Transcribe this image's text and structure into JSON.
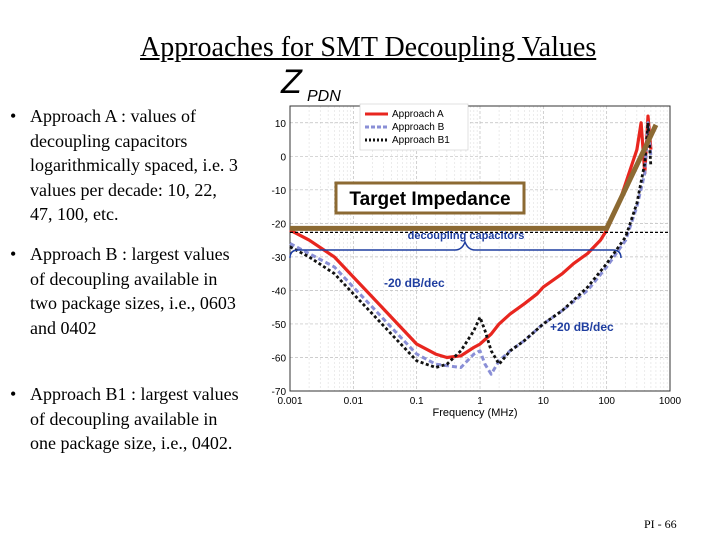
{
  "slide": {
    "title": "Approaches for SMT Decoupling Values",
    "page_number": "PI - 66"
  },
  "bullets": [
    {
      "text": "Approach A : values of decoupling capacitors logarithmically spaced, i.e. 3 values  per decade: 10, 22, 47, 100, etc."
    },
    {
      "text": "Approach B : largest values of decoupling available in two package sizes, i.e., 0603 and 0402"
    },
    {
      "text": "Approach B1 : largest values of decoupling available in  one package size, i.e., 0402."
    }
  ],
  "colors": {
    "approach_a": "#e8261f",
    "approach_b": "#8a8fd6",
    "approach_b1": "#111111",
    "target": "#8c6a33",
    "annotation": "#1f3ea0"
  },
  "chart_data": {
    "type": "line",
    "title": "Z_PDN",
    "title_main": "Z",
    "title_sub": "PDN",
    "xlabel": "Frequency (MHz)",
    "ylabel": "",
    "x_scale": "log",
    "xlim": [
      0.001,
      1000
    ],
    "ylim": [
      -70,
      15
    ],
    "grid": true,
    "x_ticks": [
      "0.001",
      "0.01",
      "0.1",
      "1",
      "10",
      "100",
      "1000"
    ],
    "y_ticks": [
      "10",
      "0",
      "-10",
      "-20",
      "-30",
      "-40",
      "-50",
      "-60",
      "-70"
    ],
    "legend": [
      "Approach A",
      "Approach B",
      "Approach B1"
    ],
    "legend_position": "top-left",
    "series": [
      {
        "name": "Approach A",
        "x": [
          0.001,
          0.002,
          0.005,
          0.01,
          0.02,
          0.05,
          0.1,
          0.2,
          0.3,
          0.5,
          0.8,
          1,
          1.5,
          2,
          3,
          5,
          8,
          10,
          20,
          30,
          50,
          80,
          100,
          150,
          200,
          300,
          350,
          400,
          450,
          500
        ],
        "y": [
          -22,
          -25,
          -30,
          -36,
          -42,
          -50,
          -56,
          -59,
          -60,
          -59.5,
          -57,
          -56,
          -53,
          -50,
          -47,
          -44,
          -41,
          -39,
          -35,
          -32,
          -29,
          -25,
          -22,
          -15,
          -8,
          2,
          10,
          -5,
          12,
          2
        ]
      },
      {
        "name": "Approach B",
        "x": [
          0.001,
          0.002,
          0.005,
          0.01,
          0.02,
          0.05,
          0.1,
          0.2,
          0.5,
          0.8,
          1,
          1.2,
          1.5,
          2,
          3,
          5,
          10,
          20,
          50,
          100,
          200,
          300,
          400,
          450,
          500
        ],
        "y": [
          -26,
          -29,
          -33,
          -39,
          -45,
          -53,
          -59,
          -62,
          -63,
          -59,
          -58,
          -62,
          -65,
          -61,
          -58,
          -55,
          -50,
          -46,
          -40,
          -33,
          -25,
          -15,
          -5,
          10,
          0
        ]
      },
      {
        "name": "Approach B1",
        "x": [
          0.001,
          0.002,
          0.005,
          0.01,
          0.02,
          0.05,
          0.1,
          0.2,
          0.3,
          0.5,
          0.8,
          1,
          1.2,
          1.5,
          2,
          3,
          5,
          10,
          20,
          50,
          100,
          200,
          300,
          400,
          450,
          500
        ],
        "y": [
          -27,
          -30,
          -35,
          -41,
          -47,
          -55,
          -61,
          -63,
          -62,
          -58,
          -52,
          -48,
          -52,
          -58,
          -62,
          -58,
          -55,
          -50,
          -46,
          -39,
          -32,
          -24,
          -14,
          -2,
          10,
          -3
        ]
      }
    ],
    "target_impedance": {
      "label": "Target Impedance",
      "y": -21.5,
      "x_end": 100,
      "rise_to_x": 600,
      "rise_to_y": 4
    },
    "annotations": [
      {
        "text": "decoupling capacitors"
      },
      {
        "text": "-20 dB/dec"
      },
      {
        "text": "+20 dB/dec"
      }
    ]
  }
}
